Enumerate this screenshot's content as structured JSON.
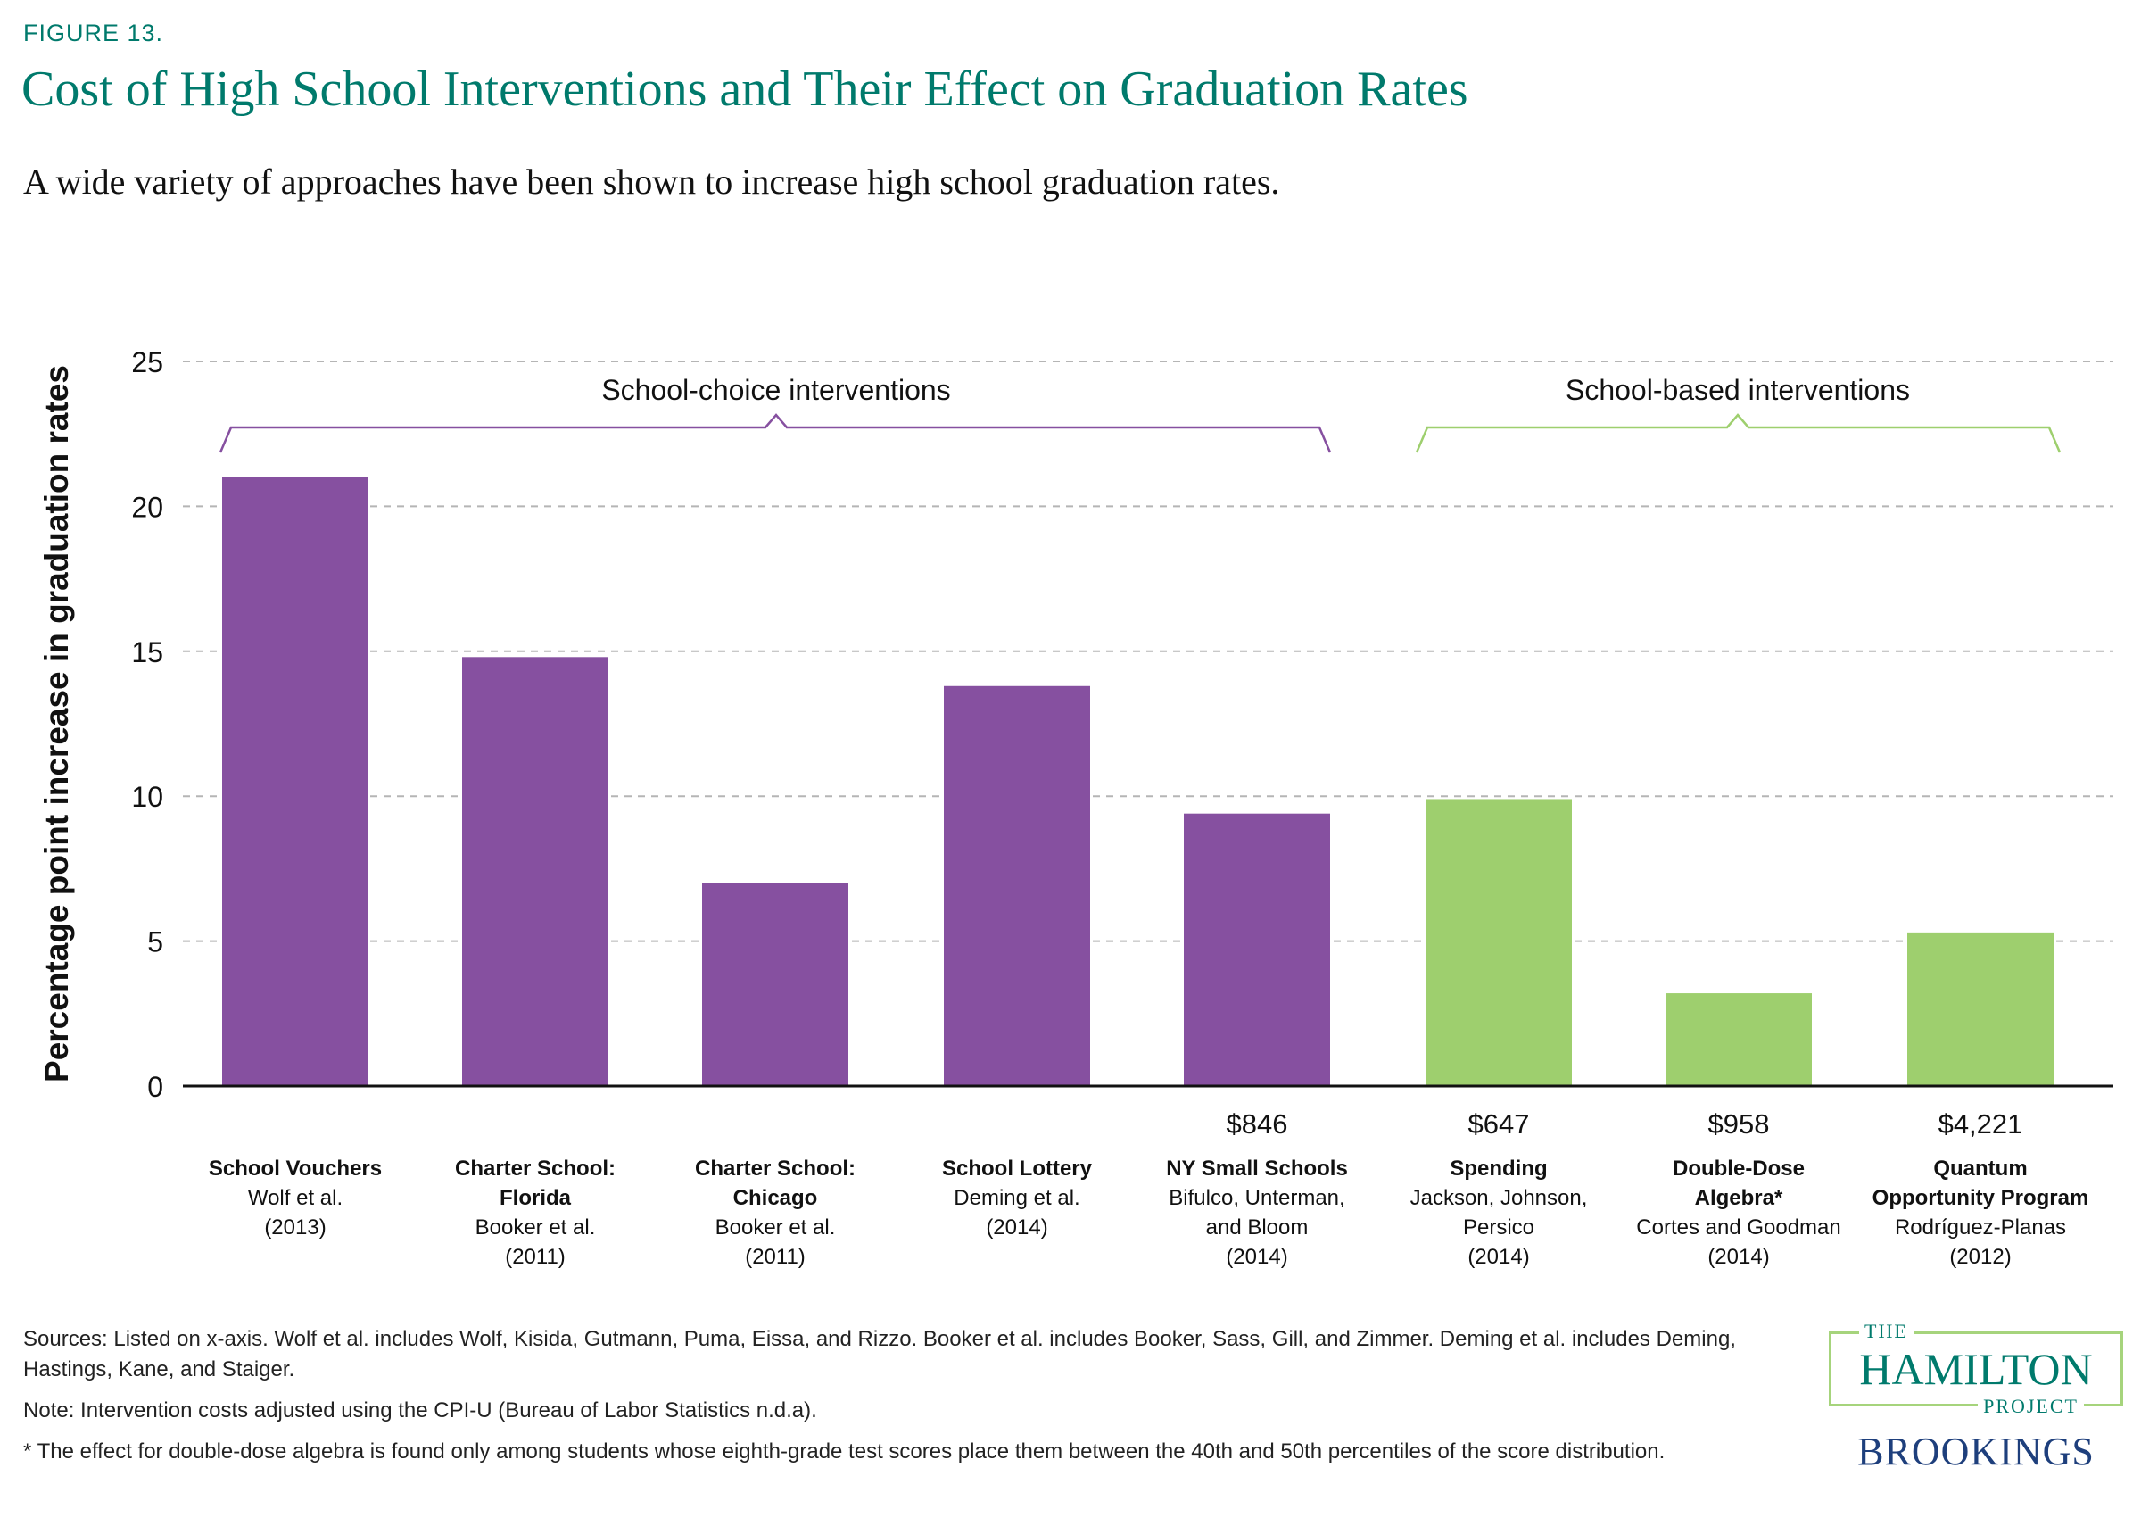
{
  "figure_label": "FIGURE 13.",
  "title": "Cost of High School Interventions and Their Effect on Graduation Rates",
  "subtitle": "A wide variety of approaches have been shown to increase high school graduation rates.",
  "chart_data": {
    "type": "bar",
    "ylabel": "Percentage point increase in graduation rates",
    "ylim": [
      0,
      25
    ],
    "yticks": [
      0,
      5,
      10,
      15,
      20,
      25
    ],
    "grid": true,
    "categories": [
      {
        "name": "School Vouchers",
        "source": [
          "Wolf et al.",
          "(2013)"
        ],
        "cost": "",
        "group": "choice",
        "name_lines": [
          "School Vouchers"
        ]
      },
      {
        "name": "Charter School: Florida",
        "source": [
          "Booker et al.",
          "(2011)"
        ],
        "cost": "",
        "group": "choice",
        "name_lines": [
          "Charter School:",
          "Florida"
        ]
      },
      {
        "name": "Charter School: Chicago",
        "source": [
          "Booker et al.",
          "(2011)"
        ],
        "cost": "",
        "group": "choice",
        "name_lines": [
          "Charter School:",
          "Chicago"
        ]
      },
      {
        "name": "School Lottery",
        "source": [
          "Deming et al.",
          "(2014)"
        ],
        "cost": "",
        "group": "choice",
        "name_lines": [
          "School Lottery"
        ]
      },
      {
        "name": "NY Small Schools",
        "source": [
          "Bifulco, Unterman,",
          "and Bloom",
          "(2014)"
        ],
        "cost": "$846",
        "group": "choice",
        "name_lines": [
          "NY Small Schools"
        ]
      },
      {
        "name": "Spending",
        "source": [
          "Jackson, Johnson,",
          "Persico",
          "(2014)"
        ],
        "cost": "$647",
        "group": "based",
        "name_lines": [
          "Spending"
        ]
      },
      {
        "name": "Double-Dose Algebra*",
        "source": [
          "Cortes and Goodman",
          "(2014)"
        ],
        "cost": "$958",
        "group": "based",
        "name_lines": [
          "Double-Dose",
          "Algebra*"
        ]
      },
      {
        "name": "Quantum Opportunity Program",
        "source": [
          "Rodríguez-Planas",
          "(2012)"
        ],
        "cost": "$4,221",
        "group": "based",
        "name_lines": [
          "Quantum",
          "Opportunity Program"
        ]
      }
    ],
    "values": [
      21.0,
      14.8,
      7.0,
      13.8,
      9.4,
      9.9,
      3.2,
      5.3
    ],
    "groups": [
      {
        "key": "choice",
        "label": "School-choice interventions",
        "color": "#8650a0"
      },
      {
        "key": "based",
        "label": "School-based interventions",
        "color": "#9ecf6e"
      }
    ]
  },
  "notes": {
    "sources": "Sources: Listed on x-axis. Wolf et al. includes Wolf, Kisida, Gutmann, Puma, Eissa, and Rizzo. Booker et al. includes Booker, Sass, Gill, and Zimmer. Deming et al. includes Deming, Hastings, Kane, and Staiger.",
    "note": "Note: Intervention costs adjusted using the CPI-U (Bureau of Labor Statistics n.d.a).",
    "footnote": "* The effect for double-dose algebra is found only among students whose eighth-grade test scores place them between the 40th and 50th percentiles of the score distribution."
  },
  "logo": {
    "the": "THE",
    "hamilton": "HAMILTON",
    "project": "PROJECT",
    "brookings": "BROOKINGS"
  }
}
